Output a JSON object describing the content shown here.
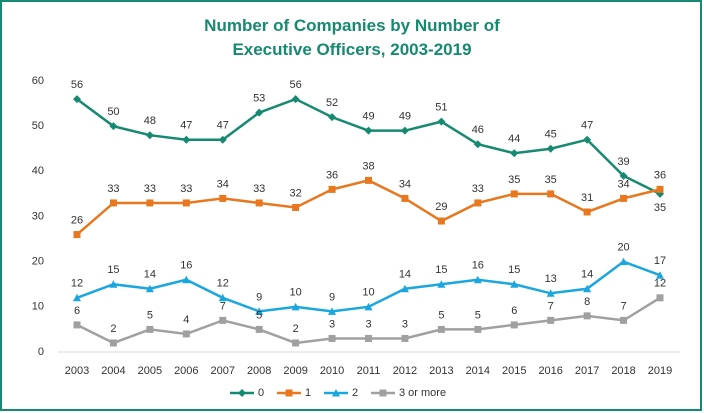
{
  "chart_data": {
    "type": "line",
    "title": "Number of Companies by Number of Executive Officers, 2003-2019",
    "categories": [
      "2003",
      "2004",
      "2005",
      "2006",
      "2007",
      "2008",
      "2009",
      "2010",
      "2011",
      "2012",
      "2013",
      "2014",
      "2015",
      "2016",
      "2017",
      "2018",
      "2019"
    ],
    "series": [
      {
        "name": "0",
        "color": "#168a70",
        "marker": "diamond",
        "values": [
          56,
          50,
          48,
          47,
          47,
          53,
          56,
          52,
          49,
          49,
          51,
          46,
          44,
          45,
          47,
          39,
          35
        ]
      },
      {
        "name": "1",
        "color": "#e8771e",
        "marker": "square",
        "values": [
          26,
          33,
          33,
          33,
          34,
          33,
          32,
          36,
          38,
          34,
          29,
          33,
          35,
          35,
          31,
          34,
          36
        ]
      },
      {
        "name": "2",
        "color": "#1aa7e0",
        "marker": "triangle",
        "values": [
          12,
          15,
          14,
          16,
          12,
          9,
          10,
          9,
          10,
          14,
          15,
          16,
          15,
          13,
          14,
          20,
          17
        ]
      },
      {
        "name": "3 or more",
        "color": "#a0a0a0",
        "marker": "square",
        "values": [
          6,
          2,
          5,
          4,
          7,
          5,
          2,
          3,
          3,
          3,
          5,
          5,
          6,
          7,
          8,
          7,
          12
        ]
      }
    ],
    "ylim": [
      0,
      60
    ],
    "yticks": [
      0,
      10,
      20,
      30,
      40,
      50,
      60
    ],
    "grid": false,
    "legend": "bottom",
    "data_labels": true
  }
}
